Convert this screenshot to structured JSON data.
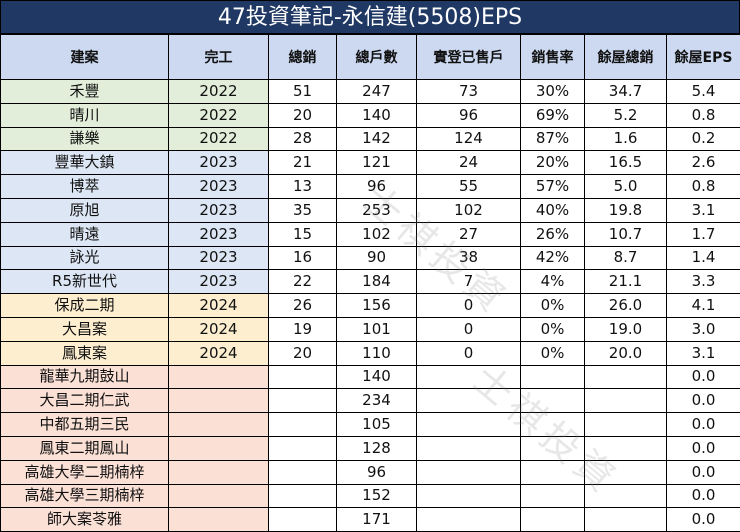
{
  "title": "47投資筆記-永信建(5508)EPS",
  "headers": [
    "建案",
    "完工",
    "總銷",
    "總戶數",
    "實登已售戶",
    "銷售率",
    "餘屋總銷",
    "餘屋EPS"
  ],
  "rows": [
    {
      "group": "g",
      "cells": [
        "禾豐",
        "2022",
        "51",
        "247",
        "73",
        "30%",
        "34.7",
        "5.4"
      ]
    },
    {
      "group": "g",
      "cells": [
        "晴川",
        "2022",
        "20",
        "140",
        "96",
        "69%",
        "5.2",
        "0.8"
      ]
    },
    {
      "group": "g",
      "cells": [
        "謙樂",
        "2022",
        "28",
        "142",
        "124",
        "87%",
        "1.6",
        "0.2"
      ]
    },
    {
      "group": "b",
      "cells": [
        "豐華大鎮",
        "2023",
        "21",
        "121",
        "24",
        "20%",
        "16.5",
        "2.6"
      ]
    },
    {
      "group": "b",
      "cells": [
        "博萃",
        "2023",
        "13",
        "96",
        "55",
        "57%",
        "5.0",
        "0.8"
      ]
    },
    {
      "group": "b",
      "cells": [
        "原旭",
        "2023",
        "35",
        "253",
        "102",
        "40%",
        "19.8",
        "3.1"
      ]
    },
    {
      "group": "b",
      "cells": [
        "晴遠",
        "2023",
        "15",
        "102",
        "27",
        "26%",
        "10.7",
        "1.7"
      ]
    },
    {
      "group": "b",
      "cells": [
        "詠光",
        "2023",
        "16",
        "90",
        "38",
        "42%",
        "8.7",
        "1.4"
      ]
    },
    {
      "group": "b",
      "cells": [
        "R5新世代",
        "2023",
        "22",
        "184",
        "7",
        "4%",
        "21.1",
        "3.3"
      ]
    },
    {
      "group": "y",
      "cells": [
        "保成二期",
        "2024",
        "26",
        "156",
        "0",
        "0%",
        "26.0",
        "4.1"
      ]
    },
    {
      "group": "y",
      "cells": [
        "大昌案",
        "2024",
        "19",
        "101",
        "0",
        "0%",
        "19.0",
        "3.0"
      ]
    },
    {
      "group": "y",
      "cells": [
        "鳳東案",
        "2024",
        "20",
        "110",
        "0",
        "0%",
        "20.0",
        "3.1"
      ]
    },
    {
      "group": "p",
      "cells": [
        "龍華九期鼓山",
        "",
        "",
        "140",
        "",
        "",
        "",
        "0.0"
      ]
    },
    {
      "group": "p",
      "cells": [
        "大昌二期仁武",
        "",
        "",
        "234",
        "",
        "",
        "",
        "0.0"
      ]
    },
    {
      "group": "p",
      "cells": [
        "中都五期三民",
        "",
        "",
        "105",
        "",
        "",
        "",
        "0.0"
      ]
    },
    {
      "group": "p",
      "cells": [
        "鳳東二期鳳山",
        "",
        "",
        "128",
        "",
        "",
        "",
        "0.0"
      ]
    },
    {
      "group": "p",
      "cells": [
        "高雄大學二期楠梓",
        "",
        "",
        "96",
        "",
        "",
        "",
        "0.0"
      ]
    },
    {
      "group": "p",
      "cells": [
        "高雄大學三期楠梓",
        "",
        "",
        "152",
        "",
        "",
        "",
        "0.0"
      ]
    },
    {
      "group": "p",
      "cells": [
        "師大案苓雅",
        "",
        "",
        "171",
        "",
        "",
        "",
        "0.0"
      ]
    }
  ],
  "watermark": "士祺投資"
}
